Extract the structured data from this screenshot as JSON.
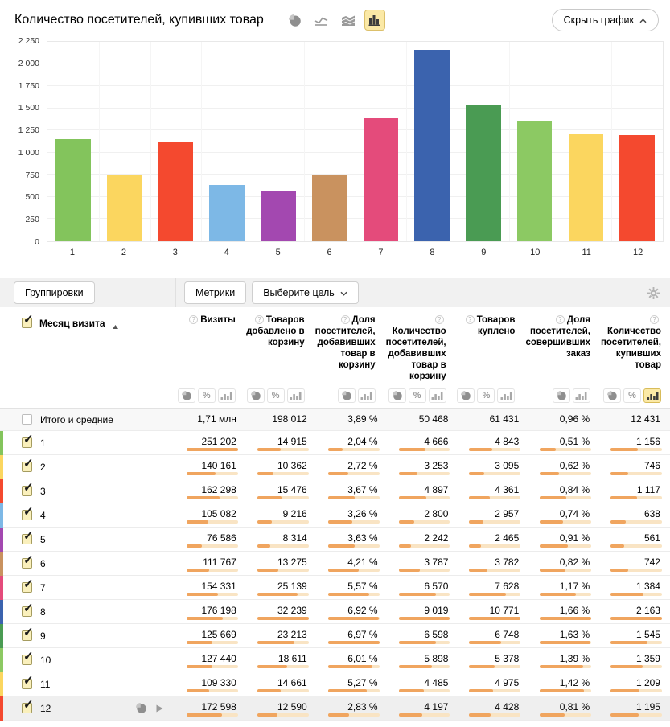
{
  "header": {
    "title": "Количество посетителей, купивших товар",
    "hide_chart_label": "Скрыть график",
    "chart_type_icons": [
      {
        "name": "pie-chart-type-icon",
        "type": "pie",
        "selected": false
      },
      {
        "name": "line-chart-type-icon",
        "type": "line",
        "selected": false
      },
      {
        "name": "stacked-chart-type-icon",
        "type": "stacked",
        "selected": false
      },
      {
        "name": "bar-chart-type-icon",
        "type": "bars",
        "selected": true
      }
    ]
  },
  "chart_data": {
    "type": "bar",
    "title": "Количество посетителей, купивших товар",
    "categories": [
      "1",
      "2",
      "3",
      "4",
      "5",
      "6",
      "7",
      "8",
      "9",
      "10",
      "11",
      "12"
    ],
    "values": [
      1156,
      746,
      1117,
      638,
      561,
      742,
      1384,
      2163,
      1545,
      1359,
      1209,
      1195
    ],
    "xlabel": "",
    "ylabel": "",
    "ylim": [
      0,
      2250
    ],
    "ytick_labels": [
      "0",
      "250",
      "500",
      "750",
      "1 000",
      "1 250",
      "1 500",
      "1 750",
      "2 000",
      "2 250"
    ],
    "grid": true,
    "legend": "none",
    "bar_colors": [
      "#83C45C",
      "#FBD65F",
      "#F4492F",
      "#7DB8E6",
      "#A348B0",
      "#C9925F",
      "#E44B7B",
      "#3B63AE",
      "#4A9B53",
      "#8CC963",
      "#FBD65F",
      "#F4492F"
    ]
  },
  "controls": {
    "groupings_label": "Группировки",
    "metrics_label": "Метрики",
    "goal_label": "Выберите цель"
  },
  "table": {
    "row_dimension_label": "Месяц визита",
    "columns": [
      {
        "label": "Визиты",
        "icons": [
          "pie",
          "percent",
          "bars"
        ],
        "selected_icon": null
      },
      {
        "label": "Товаров добавлено в корзину",
        "icons": [
          "pie",
          "percent",
          "bars"
        ],
        "selected_icon": null
      },
      {
        "label": "Доля посетителей, добавивших товар в корзину",
        "icons": [
          "pie",
          "bars"
        ],
        "selected_icon": null
      },
      {
        "label": "Количество посетителей, добавивших товар в корзину",
        "icons": [
          "pie",
          "percent",
          "bars"
        ],
        "selected_icon": null
      },
      {
        "label": "Товаров куплено",
        "icons": [
          "pie",
          "percent",
          "bars"
        ],
        "selected_icon": null
      },
      {
        "label": "Доля посетителей, совершивших заказ",
        "icons": [
          "pie",
          "bars"
        ],
        "selected_icon": null
      },
      {
        "label": "Количество посетителей, купивших товар",
        "icons": [
          "pie",
          "percent",
          "bars"
        ],
        "selected_icon": "bars"
      }
    ],
    "totals": {
      "label": "Итого и средние",
      "values": [
        "1,71 млн",
        "198 012",
        "3,89 %",
        "50 468",
        "61 431",
        "0,96 %",
        "12 431"
      ]
    },
    "rows": [
      {
        "label": "1",
        "checked": true,
        "hovered": false,
        "display": [
          "251 202",
          "14 915",
          "2,04 %",
          "4 666",
          "4 843",
          "0,51 %",
          "1 156"
        ],
        "raw": [
          251202,
          14915,
          2.04,
          4666,
          4843,
          0.51,
          1156
        ]
      },
      {
        "label": "2",
        "checked": true,
        "hovered": false,
        "display": [
          "140 161",
          "10 362",
          "2,72 %",
          "3 253",
          "3 095",
          "0,62 %",
          "746"
        ],
        "raw": [
          140161,
          10362,
          2.72,
          3253,
          3095,
          0.62,
          746
        ]
      },
      {
        "label": "3",
        "checked": true,
        "hovered": false,
        "display": [
          "162 298",
          "15 476",
          "3,67 %",
          "4 897",
          "4 361",
          "0,84 %",
          "1 117"
        ],
        "raw": [
          162298,
          15476,
          3.67,
          4897,
          4361,
          0.84,
          1117
        ]
      },
      {
        "label": "4",
        "checked": true,
        "hovered": false,
        "display": [
          "105 082",
          "9 216",
          "3,26 %",
          "2 800",
          "2 957",
          "0,74 %",
          "638"
        ],
        "raw": [
          105082,
          9216,
          3.26,
          2800,
          2957,
          0.74,
          638
        ]
      },
      {
        "label": "5",
        "checked": true,
        "hovered": false,
        "display": [
          "76 586",
          "8 314",
          "3,63 %",
          "2 242",
          "2 465",
          "0,91 %",
          "561"
        ],
        "raw": [
          76586,
          8314,
          3.63,
          2242,
          2465,
          0.91,
          561
        ]
      },
      {
        "label": "6",
        "checked": true,
        "hovered": false,
        "display": [
          "111 767",
          "13 275",
          "4,21 %",
          "3 787",
          "3 782",
          "0,82 %",
          "742"
        ],
        "raw": [
          111767,
          13275,
          4.21,
          3787,
          3782,
          0.82,
          742
        ]
      },
      {
        "label": "7",
        "checked": true,
        "hovered": false,
        "display": [
          "154 331",
          "25 139",
          "5,57 %",
          "6 570",
          "7 628",
          "1,17 %",
          "1 384"
        ],
        "raw": [
          154331,
          25139,
          5.57,
          6570,
          7628,
          1.17,
          1384
        ]
      },
      {
        "label": "8",
        "checked": true,
        "hovered": false,
        "display": [
          "176 198",
          "32 239",
          "6,92 %",
          "9 019",
          "10 771",
          "1,66 %",
          "2 163"
        ],
        "raw": [
          176198,
          32239,
          6.92,
          9019,
          10771,
          1.66,
          2163
        ]
      },
      {
        "label": "9",
        "checked": true,
        "hovered": false,
        "display": [
          "125 669",
          "23 213",
          "6,97 %",
          "6 598",
          "6 748",
          "1,63 %",
          "1 545"
        ],
        "raw": [
          125669,
          23213,
          6.97,
          6598,
          6748,
          1.63,
          1545
        ]
      },
      {
        "label": "10",
        "checked": true,
        "hovered": false,
        "display": [
          "127 440",
          "18 611",
          "6,01 %",
          "5 898",
          "5 378",
          "1,39 %",
          "1 359"
        ],
        "raw": [
          127440,
          18611,
          6.01,
          5898,
          5378,
          1.39,
          1359
        ]
      },
      {
        "label": "11",
        "checked": true,
        "hovered": false,
        "display": [
          "109 330",
          "14 661",
          "5,27 %",
          "4 485",
          "4 975",
          "1,42 %",
          "1 209"
        ],
        "raw": [
          109330,
          14661,
          5.27,
          4485,
          4975,
          1.42,
          1209
        ]
      },
      {
        "label": "12",
        "checked": true,
        "hovered": true,
        "display": [
          "172 598",
          "12 590",
          "2,83 %",
          "4 197",
          "4 428",
          "0,81 %",
          "1 195"
        ],
        "raw": [
          172598,
          12590,
          2.83,
          4197,
          4428,
          0.81,
          1195
        ]
      }
    ]
  },
  "colors": {
    "selected_bg": "#FBE9A6",
    "selected_border": "#D8BC5A",
    "minibar_fill": "#F0A55F",
    "minibar_track": "#F9E4C4",
    "icon_gray": "#9a9a9a"
  }
}
